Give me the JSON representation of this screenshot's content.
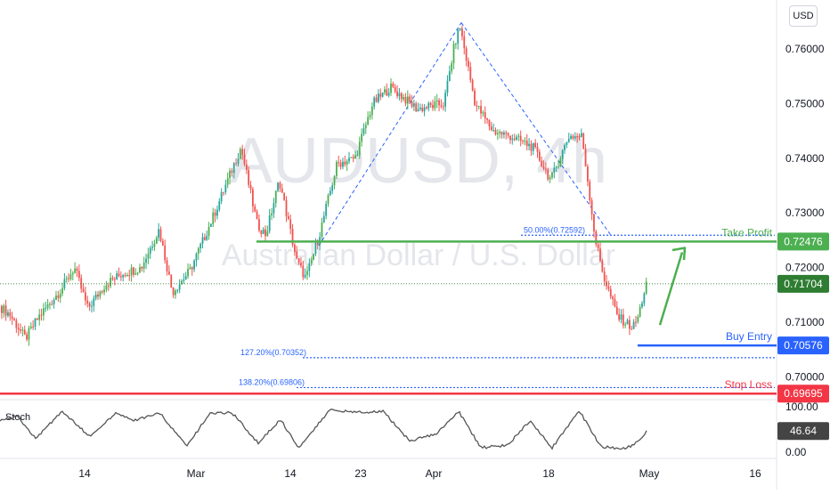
{
  "currency_button": "USD",
  "watermark": {
    "symbol": "AUDUSD, 4h",
    "description": "Australian Dollar / U.S. Dollar"
  },
  "colors": {
    "candle_up": "#26a69a",
    "candle_up_alt": "#4caf50",
    "candle_down": "#ef5350",
    "take_profit": "#4caf50",
    "buy_entry": "#2962ff",
    "stop_loss": "#f23645",
    "fib": "#2962ff",
    "stoch_line": "#555555",
    "arrow": "#4caf50",
    "current_price": "#2e7d32"
  },
  "chart_data": {
    "type": "candlestick",
    "instrument": "AUDUSD",
    "timeframe": "4h",
    "x_ticks": [
      "14",
      "Mar",
      "14",
      "23",
      "Apr",
      "18",
      "May",
      "16"
    ],
    "y_ticks": [
      "0.76000",
      "0.75000",
      "0.74000",
      "0.73000",
      "0.72000",
      "0.71000",
      "0.70000"
    ],
    "ylim": [
      0.6965,
      0.7665
    ],
    "path_knots": [
      {
        "x": 0,
        "y": 0.713
      },
      {
        "x": 12,
        "y": 0.7115
      },
      {
        "x": 30,
        "y": 0.707
      },
      {
        "x": 45,
        "y": 0.711
      },
      {
        "x": 70,
        "y": 0.716
      },
      {
        "x": 85,
        "y": 0.72
      },
      {
        "x": 100,
        "y": 0.7125
      },
      {
        "x": 120,
        "y": 0.717
      },
      {
        "x": 140,
        "y": 0.719
      },
      {
        "x": 160,
        "y": 0.72
      },
      {
        "x": 180,
        "y": 0.727
      },
      {
        "x": 195,
        "y": 0.7155
      },
      {
        "x": 215,
        "y": 0.7195
      },
      {
        "x": 240,
        "y": 0.729
      },
      {
        "x": 272,
        "y": 0.742
      },
      {
        "x": 290,
        "y": 0.728
      },
      {
        "x": 300,
        "y": 0.726
      },
      {
        "x": 315,
        "y": 0.736
      },
      {
        "x": 335,
        "y": 0.721
      },
      {
        "x": 345,
        "y": 0.718
      },
      {
        "x": 360,
        "y": 0.726
      },
      {
        "x": 380,
        "y": 0.739
      },
      {
        "x": 400,
        "y": 0.74
      },
      {
        "x": 420,
        "y": 0.75
      },
      {
        "x": 440,
        "y": 0.753
      },
      {
        "x": 470,
        "y": 0.749
      },
      {
        "x": 500,
        "y": 0.75
      },
      {
        "x": 512,
        "y": 0.761
      },
      {
        "x": 518,
        "y": 0.764
      },
      {
        "x": 535,
        "y": 0.75
      },
      {
        "x": 555,
        "y": 0.745
      },
      {
        "x": 575,
        "y": 0.744
      },
      {
        "x": 600,
        "y": 0.742
      },
      {
        "x": 620,
        "y": 0.736
      },
      {
        "x": 640,
        "y": 0.744
      },
      {
        "x": 655,
        "y": 0.744
      },
      {
        "x": 670,
        "y": 0.725
      },
      {
        "x": 680,
        "y": 0.718
      },
      {
        "x": 695,
        "y": 0.711
      },
      {
        "x": 712,
        "y": 0.709
      },
      {
        "x": 718,
        "y": 0.711
      },
      {
        "x": 727,
        "y": 0.717
      }
    ],
    "stoch_knots": [
      {
        "x": 0,
        "y": 70
      },
      {
        "x": 20,
        "y": 78
      },
      {
        "x": 40,
        "y": 30
      },
      {
        "x": 70,
        "y": 90
      },
      {
        "x": 100,
        "y": 35
      },
      {
        "x": 130,
        "y": 85
      },
      {
        "x": 150,
        "y": 70
      },
      {
        "x": 180,
        "y": 85
      },
      {
        "x": 210,
        "y": 12
      },
      {
        "x": 235,
        "y": 85
      },
      {
        "x": 260,
        "y": 88
      },
      {
        "x": 290,
        "y": 20
      },
      {
        "x": 315,
        "y": 72
      },
      {
        "x": 335,
        "y": 10
      },
      {
        "x": 370,
        "y": 92
      },
      {
        "x": 400,
        "y": 88
      },
      {
        "x": 430,
        "y": 90
      },
      {
        "x": 460,
        "y": 25
      },
      {
        "x": 490,
        "y": 40
      },
      {
        "x": 515,
        "y": 90
      },
      {
        "x": 540,
        "y": 10
      },
      {
        "x": 570,
        "y": 15
      },
      {
        "x": 595,
        "y": 70
      },
      {
        "x": 620,
        "y": 10
      },
      {
        "x": 650,
        "y": 92
      },
      {
        "x": 675,
        "y": 12
      },
      {
        "x": 700,
        "y": 8
      },
      {
        "x": 712,
        "y": 15
      },
      {
        "x": 727,
        "y": 47
      }
    ],
    "levels": {
      "take_profit": {
        "label": "Take Profit",
        "price_label": "0.72476",
        "value": 0.72476
      },
      "buy_entry": {
        "label": "Buy Entry",
        "price_label": "0.70576",
        "value": 0.70576
      },
      "stop_loss": {
        "label": "Stop Loss",
        "price_label": "0.69695",
        "value": 0.69695
      },
      "current": {
        "price_label": "0.71704",
        "value": 0.71704
      }
    },
    "fib_levels": [
      {
        "label": "50.00%(0.72592)",
        "value": 0.72592
      },
      {
        "label": "127.20%(0.70352)",
        "value": 0.70352
      },
      {
        "label": "138.20%(0.69806)",
        "value": 0.69806
      }
    ],
    "stoch": {
      "label": "Stoch",
      "value_label": "46.64",
      "value": 46.64,
      "axis_labels": [
        "100.00",
        "0.00"
      ],
      "ylim": [
        0,
        100
      ]
    }
  }
}
